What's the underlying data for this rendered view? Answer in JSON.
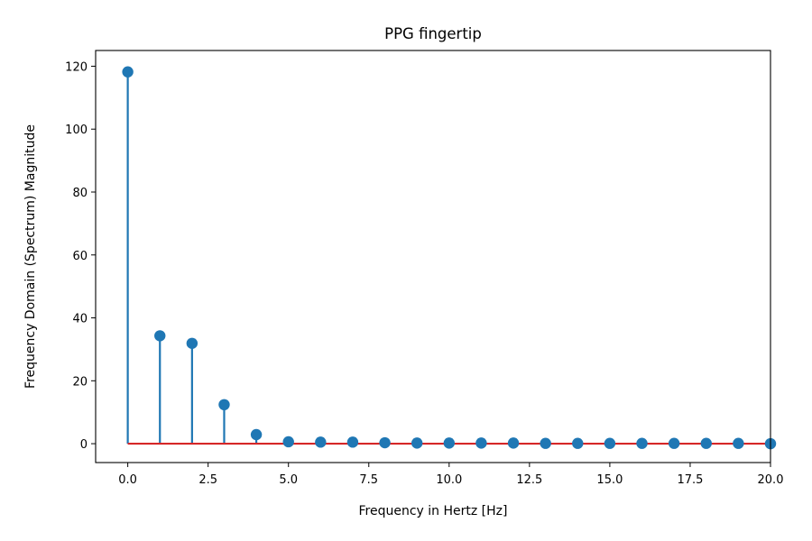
{
  "chart_data": {
    "type": "stem",
    "title": "PPG fingertip",
    "xlabel": "Frequency in Hertz [Hz]",
    "ylabel": "Frequency Domain (Spectrum) Magnitude",
    "xlim": [
      -1,
      20
    ],
    "ylim": [
      -6,
      125
    ],
    "x_ticks": [
      0.0,
      2.5,
      5.0,
      7.5,
      10.0,
      12.5,
      15.0,
      17.5,
      20.0
    ],
    "x_tick_labels": [
      "0.0",
      "2.5",
      "5.0",
      "7.5",
      "10.0",
      "12.5",
      "15.0",
      "17.5",
      "20.0"
    ],
    "y_ticks": [
      0,
      20,
      40,
      60,
      80,
      100,
      120
    ],
    "y_tick_labels": [
      "0",
      "20",
      "40",
      "60",
      "80",
      "100",
      "120"
    ],
    "grid": false,
    "series": [
      {
        "x": [
          0,
          1,
          2,
          3,
          4,
          5,
          6,
          7,
          8,
          9,
          10,
          11,
          12,
          13,
          14,
          15,
          16,
          17,
          18,
          19,
          20
        ],
        "values": [
          118.2,
          34.3,
          31.9,
          12.4,
          2.9,
          0.6,
          0.5,
          0.5,
          0.3,
          0.2,
          0.2,
          0.2,
          0.2,
          0.1,
          0.1,
          0.1,
          0.1,
          0.1,
          0.1,
          0.1,
          0.0
        ]
      }
    ],
    "colors": {
      "stem": "#1f77b4",
      "marker": "#1f77b4",
      "baseline": "#d62728"
    }
  }
}
